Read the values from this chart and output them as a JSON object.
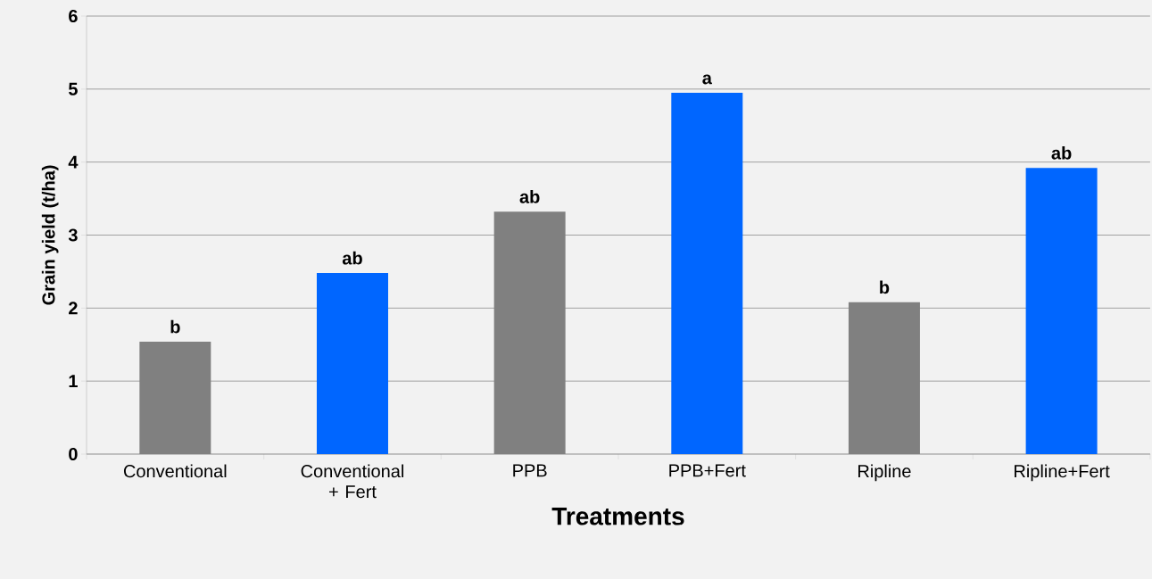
{
  "chart_data": {
    "type": "bar",
    "xlabel": "Treatments",
    "ylabel": "Grain yield (t/ha)",
    "categories": [
      "Conventional",
      "Conventional + Fert",
      "PPB",
      "PPB+Fert",
      "Ripline",
      "Ripline+Fert"
    ],
    "values": [
      1.54,
      2.48,
      3.32,
      4.95,
      2.08,
      3.92
    ],
    "colors": [
      "#808080",
      "#0066ff",
      "#808080",
      "#0066ff",
      "#808080",
      "#0066ff"
    ],
    "ylim": [
      0,
      6
    ],
    "yticks": [
      0,
      1,
      2,
      3,
      4,
      5,
      6
    ],
    "grid": "y",
    "annotations": [
      {
        "text": "b",
        "x": "Conventional",
        "y": 1.54
      },
      {
        "text": "ab",
        "x": "Conventional + Fert",
        "y": 2.48
      },
      {
        "text": "ab",
        "x": "PPB",
        "y": 3.32
      },
      {
        "text": "a",
        "x": "PPB+Fert",
        "y": 4.95
      },
      {
        "text": "b",
        "x": "Ripline",
        "y": 2.08
      },
      {
        "text": "ab",
        "x": "Ripline+Fert",
        "y": 3.92
      }
    ]
  }
}
